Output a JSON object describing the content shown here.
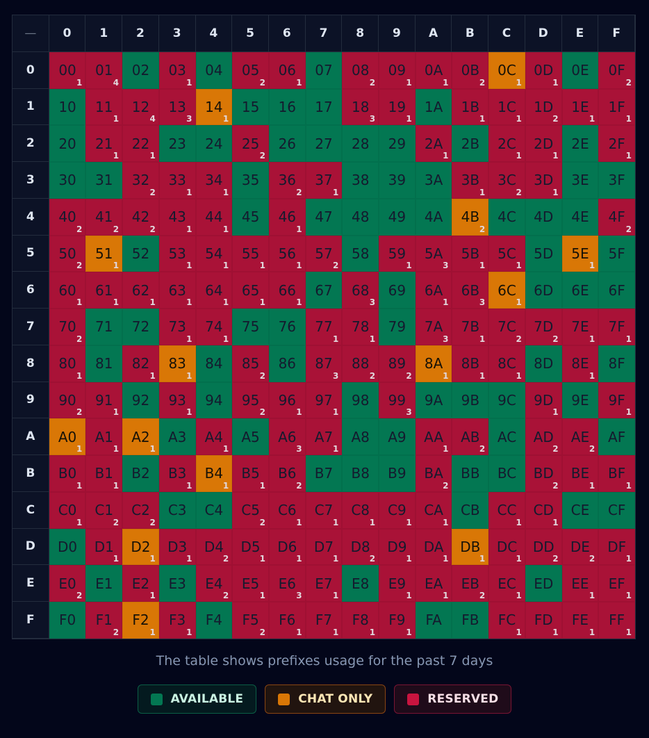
{
  "table": {
    "corner_label": "—",
    "column_headers": [
      "0",
      "1",
      "2",
      "3",
      "4",
      "5",
      "6",
      "7",
      "8",
      "9",
      "A",
      "B",
      "C",
      "D",
      "E",
      "F"
    ],
    "row_headers": [
      "0",
      "1",
      "2",
      "3",
      "4",
      "5",
      "6",
      "7",
      "8",
      "9",
      "A",
      "B",
      "C",
      "D",
      "E",
      "F"
    ],
    "status_legend": {
      "A": "available",
      "C": "chat",
      "R": "reserved"
    },
    "rows": [
      [
        "00:R1",
        "01:R4",
        "02:A",
        "03:R1",
        "04:A",
        "05:R2",
        "06:R1",
        "07:A",
        "08:R2",
        "09:R1",
        "0A:R1",
        "0B:R2",
        "0C:C1",
        "0D:R1",
        "0E:A",
        "0F:R2"
      ],
      [
        "10:A",
        "11:R1",
        "12:R4",
        "13:R3",
        "14:C1",
        "15:A",
        "16:A",
        "17:A",
        "18:R3",
        "19:R1",
        "1A:A",
        "1B:R1",
        "1C:R1",
        "1D:R2",
        "1E:R1",
        "1F:R1"
      ],
      [
        "20:A",
        "21:R1",
        "22:R1",
        "23:A",
        "24:A",
        "25:R2",
        "26:A",
        "27:A",
        "28:A",
        "29:A",
        "2A:R1",
        "2B:A",
        "2C:R1",
        "2D:R1",
        "2E:A",
        "2F:R1"
      ],
      [
        "30:A",
        "31:A",
        "32:R2",
        "33:R1",
        "34:R1",
        "35:A",
        "36:R2",
        "37:R1",
        "38:A",
        "39:A",
        "3A:A",
        "3B:R1",
        "3C:R2",
        "3D:R1",
        "3E:A",
        "3F:A"
      ],
      [
        "40:R2",
        "41:R2",
        "42:R2",
        "43:R1",
        "44:R1",
        "45:A",
        "46:R1",
        "47:A",
        "48:A",
        "49:A",
        "4A:A",
        "4B:C2",
        "4C:A",
        "4D:A",
        "4E:A",
        "4F:R2"
      ],
      [
        "50:R2",
        "51:C1",
        "52:A",
        "53:R1",
        "54:R1",
        "55:R1",
        "56:R1",
        "57:R2",
        "58:A",
        "59:R1",
        "5A:R3",
        "5B:R1",
        "5C:R1",
        "5D:A",
        "5E:C1",
        "5F:A"
      ],
      [
        "60:R1",
        "61:R1",
        "62:R1",
        "63:R1",
        "64:R1",
        "65:R1",
        "66:R1",
        "67:A",
        "68:R3",
        "69:A",
        "6A:R1",
        "6B:R3",
        "6C:C1",
        "6D:A",
        "6E:A",
        "6F:A"
      ],
      [
        "70:R2",
        "71:A",
        "72:A",
        "73:R1",
        "74:R1",
        "75:A",
        "76:A",
        "77:R1",
        "78:R1",
        "79:A",
        "7A:R3",
        "7B:R1",
        "7C:R2",
        "7D:R2",
        "7E:R1",
        "7F:R1"
      ],
      [
        "80:R1",
        "81:A",
        "82:R1",
        "83:C1",
        "84:A",
        "85:R2",
        "86:A",
        "87:R3",
        "88:R2",
        "89:R2",
        "8A:C1",
        "8B:R1",
        "8C:R1",
        "8D:A",
        "8E:R1",
        "8F:A"
      ],
      [
        "90:R2",
        "91:R1",
        "92:A",
        "93:R1",
        "94:A",
        "95:R2",
        "96:R1",
        "97:R1",
        "98:A",
        "99:R3",
        "9A:A",
        "9B:A",
        "9C:A",
        "9D:R1",
        "9E:A",
        "9F:R1"
      ],
      [
        "A0:C1",
        "A1:R1",
        "A2:C1",
        "A3:A",
        "A4:R1",
        "A5:A",
        "A6:R3",
        "A7:R1",
        "A8:A",
        "A9:A",
        "AA:R1",
        "AB:R2",
        "AC:A",
        "AD:R2",
        "AE:R2",
        "AF:A"
      ],
      [
        "B0:R1",
        "B1:R1",
        "B2:A",
        "B3:R1",
        "B4:C1",
        "B5:R1",
        "B6:R2",
        "B7:A",
        "B8:A",
        "B9:A",
        "BA:R2",
        "BB:A",
        "BC:A",
        "BD:R2",
        "BE:R1",
        "BF:R1"
      ],
      [
        "C0:R1",
        "C1:R2",
        "C2:R2",
        "C3:A",
        "C4:A",
        "C5:R2",
        "C6:R1",
        "C7:R1",
        "C8:R1",
        "C9:R1",
        "CA:R1",
        "CB:A",
        "CC:R1",
        "CD:R1",
        "CE:A",
        "CF:A"
      ],
      [
        "D0:A",
        "D1:R1",
        "D2:C1",
        "D3:R1",
        "D4:R2",
        "D5:R1",
        "D6:R1",
        "D7:R1",
        "D8:R2",
        "D9:R1",
        "DA:R1",
        "DB:C1",
        "DC:R1",
        "DD:R2",
        "DE:R2",
        "DF:R1"
      ],
      [
        "E0:R2",
        "E1:A",
        "E2:R1",
        "E3:A",
        "E4:R2",
        "E5:R1",
        "E6:R3",
        "E7:R1",
        "E8:A",
        "E9:R1",
        "EA:R1",
        "EB:R2",
        "EC:R1",
        "ED:A",
        "EE:R1",
        "EF:R1"
      ],
      [
        "F0:A",
        "F1:R2",
        "F2:C1",
        "F3:R1",
        "F4:A",
        "F5:R2",
        "F6:R1",
        "F7:R1",
        "F8:R1",
        "F9:R1",
        "FA:A",
        "FB:A",
        "FC:R1",
        "FD:R1",
        "FE:R1",
        "FF:R1"
      ]
    ]
  },
  "caption": "The table shows prefixes usage for the past 7 days",
  "legend": {
    "available": {
      "label": "AVAILABLE",
      "color": "#037752"
    },
    "chat": {
      "label": "CHAT ONLY",
      "color": "#d97706"
    },
    "reserved": {
      "label": "RESERVED",
      "color": "#c8143f"
    }
  },
  "colors": {
    "background": "#03061a",
    "header_bg": "#0c1226",
    "available": "#037752",
    "chat_only": "#d97706",
    "reserved": "#a91237"
  }
}
